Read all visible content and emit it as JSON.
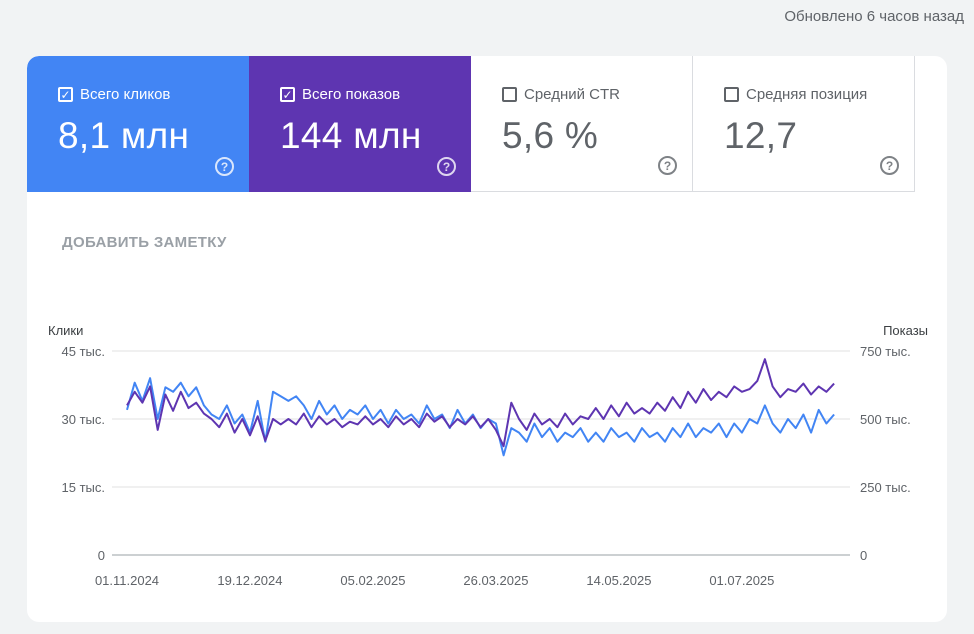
{
  "header": {
    "updated": "Обновлено 6 часов назад"
  },
  "tiles": [
    {
      "label": "Всего кликов",
      "value": "8,1 млн",
      "checked": true,
      "color": "#4285f4"
    },
    {
      "label": "Всего показов",
      "value": "144 млн",
      "checked": true,
      "color": "#5e35b1"
    },
    {
      "label": "Средний CTR",
      "value": "5,6 %",
      "checked": false
    },
    {
      "label": "Средняя позиция",
      "value": "12,7",
      "checked": false
    }
  ],
  "add_note": "ДОБАВИТЬ ЗАМЕТКУ",
  "chart_data": {
    "type": "line",
    "ylabel_left": "Клики",
    "ylabel_right": "Показы",
    "yticks_left": [
      "0",
      "15 тыс.",
      "30 тыс.",
      "45 тыс."
    ],
    "yticks_right": [
      "0",
      "250 тыс.",
      "500 тыс.",
      "750 тыс."
    ],
    "ylim_left": [
      0,
      45000
    ],
    "ylim_right": [
      0,
      750000
    ],
    "xticks": [
      "01.11.2024",
      "19.12.2024",
      "05.02.2025",
      "26.03.2025",
      "14.05.2025",
      "01.07.2025"
    ],
    "grid": true,
    "x_range": [
      "01.11.2024",
      "04.08.2025"
    ],
    "step_days": 3,
    "series": [
      {
        "name": "Клики",
        "axis": "left",
        "color": "#4285f4",
        "unit": "тыс.",
        "values": [
          32,
          38,
          34,
          39,
          30,
          37,
          36,
          38,
          35,
          37,
          33,
          31,
          30,
          33,
          29,
          31,
          27,
          34,
          25,
          36,
          35,
          34,
          35,
          33,
          30,
          34,
          31,
          33,
          30,
          32,
          31,
          33,
          30,
          32,
          29,
          32,
          30,
          31,
          29,
          33,
          30,
          31,
          28,
          32,
          29,
          31,
          28,
          30,
          29,
          22,
          28,
          27,
          25,
          29,
          26,
          28,
          25,
          27,
          26,
          28,
          25,
          27,
          25,
          28,
          26,
          27,
          25,
          28,
          26,
          27,
          25,
          28,
          26,
          29,
          26,
          28,
          27,
          29,
          26,
          29,
          27,
          30,
          29,
          33,
          29,
          27,
          30,
          28,
          31,
          27,
          32,
          29,
          31
        ]
      },
      {
        "name": "Показы",
        "axis": "right",
        "color": "#5e35b1",
        "unit": "тыс.",
        "values": [
          550,
          600,
          560,
          620,
          460,
          590,
          530,
          600,
          540,
          560,
          520,
          500,
          470,
          520,
          450,
          500,
          440,
          510,
          420,
          500,
          480,
          500,
          480,
          520,
          470,
          510,
          480,
          500,
          470,
          490,
          480,
          510,
          480,
          500,
          470,
          510,
          480,
          500,
          470,
          520,
          490,
          510,
          470,
          500,
          480,
          510,
          470,
          500,
          460,
          400,
          560,
          500,
          460,
          520,
          480,
          500,
          470,
          520,
          480,
          510,
          500,
          540,
          500,
          550,
          510,
          560,
          520,
          540,
          520,
          560,
          530,
          580,
          540,
          600,
          560,
          610,
          570,
          600,
          580,
          620,
          600,
          610,
          640,
          720,
          620,
          580,
          610,
          600,
          630,
          590,
          620,
          600,
          630
        ]
      }
    ]
  }
}
